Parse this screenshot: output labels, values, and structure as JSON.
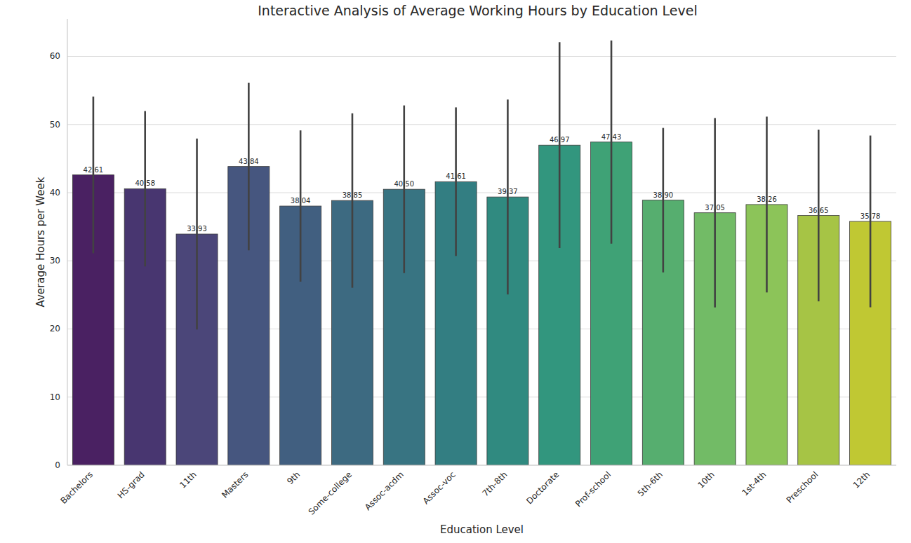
{
  "chart_data": {
    "type": "bar",
    "title": "Interactive Analysis of Average Working Hours by Education Level",
    "x_label": "Education Level",
    "y_label": "Average Hours per Week",
    "categories": [
      "Bachelors",
      "HS-grad",
      "11th",
      "Masters",
      "9th",
      "Some-college",
      "Assoc-acdm",
      "Assoc-voc",
      "7th-8th",
      "Doctorate",
      "Prof-school",
      "5th-6th",
      "10th",
      "1st-4th",
      "Preschool",
      "12th"
    ],
    "values": [
      42.61,
      40.58,
      33.93,
      43.84,
      38.04,
      38.85,
      40.5,
      41.61,
      39.37,
      46.97,
      47.43,
      38.9,
      37.05,
      38.26,
      36.65,
      35.78
    ],
    "value_labels": [
      "42.61",
      "40.58",
      "33.93",
      "43.84",
      "38.04",
      "38.85",
      "40.50",
      "41.61",
      "39.37",
      "46.97",
      "47.43",
      "38.90",
      "37.05",
      "38.26",
      "36.65",
      "35.78"
    ],
    "errors": [
      11.5,
      11.4,
      14.0,
      12.3,
      11.1,
      12.8,
      12.3,
      10.9,
      14.3,
      15.1,
      14.9,
      10.6,
      13.9,
      12.9,
      12.6,
      12.6
    ],
    "colors": [
      "#4a2162",
      "#483670",
      "#4b4679",
      "#46567f",
      "#415f80",
      "#3d6a81",
      "#387482",
      "#337e82",
      "#308a80",
      "#32967e",
      "#3fa276",
      "#56ae6f",
      "#72bb66",
      "#8cc459",
      "#a6c445",
      "#c0c833"
    ],
    "ylim": [
      0,
      65.5
    ],
    "yticks": [
      0,
      10,
      20,
      30,
      40,
      50,
      60
    ],
    "grid": true,
    "data_labels": true
  }
}
